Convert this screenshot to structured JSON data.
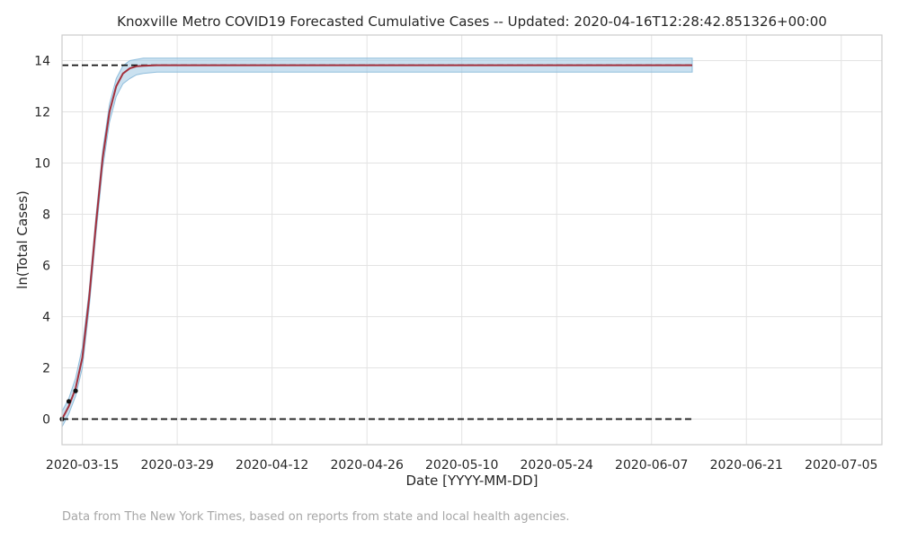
{
  "chart_data": {
    "type": "line",
    "title": "Knoxville Metro COVID19 Forecasted Cumulative Cases -- Updated: 2020-04-16T12:28:42.851326+00:00",
    "xlabel": "Date [YYYY-MM-DD]",
    "ylabel": "ln(Total Cases)",
    "source_note": "Data from The New York Times, based on reports from state and local health agencies.",
    "xlim": [
      "2020-03-12",
      "2020-07-11"
    ],
    "ylim": [
      -1,
      15
    ],
    "grid": true,
    "x_ticks": [
      "2020-03-15",
      "2020-03-29",
      "2020-04-12",
      "2020-04-26",
      "2020-05-10",
      "2020-05-24",
      "2020-06-07",
      "2020-06-21",
      "2020-07-05"
    ],
    "y_ticks": [
      0,
      2,
      4,
      6,
      8,
      10,
      12,
      14
    ],
    "colors": {
      "forecast": "#a3303c",
      "band_fill": "#a6cde6",
      "band_edge": "#8fbddc",
      "observed": "#111111",
      "reference": "#111111",
      "grid": "#e3e3e3",
      "frame": "#cccccc"
    },
    "series": [
      {
        "kind": "forecast",
        "x": [
          "2020-03-12",
          "2020-03-13",
          "2020-03-14",
          "2020-03-15",
          "2020-03-16",
          "2020-03-17",
          "2020-03-18",
          "2020-03-19",
          "2020-03-20",
          "2020-03-21",
          "2020-03-22",
          "2020-03-23",
          "2020-03-24",
          "2020-03-26",
          "2020-03-28",
          "2020-04-05",
          "2020-04-20",
          "2020-05-10",
          "2020-05-25",
          "2020-06-13"
        ],
        "y": [
          0.0,
          0.5,
          1.2,
          2.4,
          4.7,
          7.6,
          10.2,
          12.0,
          13.0,
          13.5,
          13.7,
          13.78,
          13.8,
          13.82,
          13.82,
          13.82,
          13.82,
          13.82,
          13.82,
          13.82
        ]
      },
      {
        "kind": "confidence_band",
        "x": [
          "2020-03-12",
          "2020-03-13",
          "2020-03-14",
          "2020-03-15",
          "2020-03-16",
          "2020-03-17",
          "2020-03-18",
          "2020-03-19",
          "2020-03-20",
          "2020-03-21",
          "2020-03-22",
          "2020-03-23",
          "2020-03-24",
          "2020-03-26",
          "2020-03-28",
          "2020-04-05",
          "2020-04-20",
          "2020-05-10",
          "2020-05-25",
          "2020-06-13"
        ],
        "upper": [
          0.3,
          0.8,
          1.6,
          2.8,
          5.0,
          7.9,
          10.5,
          12.3,
          13.3,
          13.8,
          14.0,
          14.05,
          14.1,
          14.1,
          14.1,
          14.1,
          14.1,
          14.1,
          14.1,
          14.1
        ],
        "lower": [
          -0.3,
          0.2,
          0.9,
          2.0,
          4.3,
          7.2,
          9.8,
          11.6,
          12.6,
          13.1,
          13.3,
          13.45,
          13.5,
          13.55,
          13.55,
          13.55,
          13.55,
          13.55,
          13.55,
          13.55
        ]
      },
      {
        "kind": "observed",
        "x": [
          "2020-03-12",
          "2020-03-13",
          "2020-03-14"
        ],
        "y": [
          0.0,
          0.69,
          1.1
        ]
      },
      {
        "kind": "reference_line",
        "x": [
          "2020-03-12",
          "2020-06-13"
        ],
        "y": [
          13.82,
          13.82
        ]
      },
      {
        "kind": "reference_line",
        "x": [
          "2020-03-12",
          "2020-06-13"
        ],
        "y": [
          0,
          0
        ]
      }
    ]
  }
}
